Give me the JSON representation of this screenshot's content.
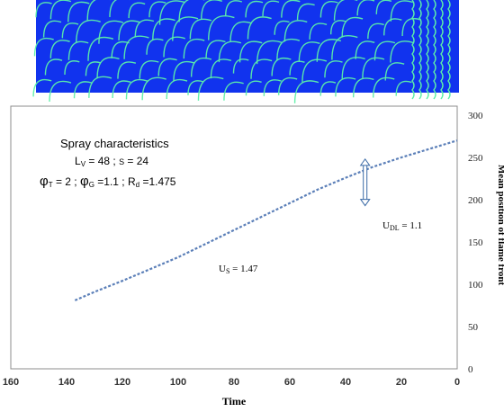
{
  "flame_image": {
    "background_color": "#1133ee",
    "front_color": "#5cf0a8"
  },
  "chart_data": {
    "type": "line",
    "x_reversed": true,
    "xlim": [
      160,
      0
    ],
    "ylim": [
      0,
      300
    ],
    "x_ticks": [
      "160",
      "140",
      "120",
      "100",
      "80",
      "60",
      "40",
      "20",
      "0"
    ],
    "y_ticks": [
      "0",
      "50",
      "100",
      "150",
      "200",
      "250",
      "300"
    ],
    "xlabel": "Time",
    "ylabel": "Mean position of flame front",
    "series": [
      {
        "color": "#5b7fb8",
        "line_style": "dashed",
        "x": [
          137,
          130,
          120,
          110,
          100,
          90,
          80,
          70,
          60,
          50,
          40,
          30,
          20,
          10,
          0
        ],
        "y": [
          81,
          91,
          104,
          118,
          132,
          148,
          164,
          180,
          196,
          212,
          226,
          239,
          250,
          260,
          270
        ]
      }
    ],
    "annotations": {
      "heading": "Spray characteristics",
      "line1": {
        "L": "L",
        "L_sub": "V",
        "L_val": " = 48 ; ",
        "S": "S",
        "S_val": " = 24"
      },
      "line2": {
        "phi1": "φ",
        "phi1_sub": "T",
        "phi1_val": " = 2 ; ",
        "phi2": "φ",
        "phi2_sub": "G",
        "phi2_val": " =1.1 ; ",
        "R": "R",
        "R_sub": "d",
        "R_val": " =1.475"
      },
      "ul": {
        "U": "U",
        "sub": "DL",
        "val": " = 1.1"
      },
      "us": {
        "U": "U",
        "sub": "S",
        "val": " = 1.47"
      }
    },
    "arrow_color": "#3a6aa6",
    "grid": false
  }
}
